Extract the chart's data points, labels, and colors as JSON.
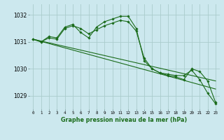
{
  "title": "Graphe pression niveau de la mer (hPa)",
  "bg_color": "#cce8ee",
  "grid_color": "#aacccc",
  "line_color": "#1a6b1a",
  "xlim": [
    -0.5,
    23.5
  ],
  "ylim": [
    1028.5,
    1032.4
  ],
  "yticks": [
    1029,
    1030,
    1031,
    1032
  ],
  "xtick_labels": [
    "0",
    "1",
    "2",
    "3",
    "4",
    "5",
    "6",
    "7",
    "8",
    "9",
    "10",
    "11",
    "12",
    "13",
    "14",
    "15",
    "16",
    "17",
    "18",
    "19",
    "20",
    "21",
    "22",
    "23"
  ],
  "series": [
    {
      "x": [
        0,
        1,
        2,
        3,
        4,
        5,
        6,
        7,
        8,
        9,
        10,
        11,
        12,
        13,
        14,
        15,
        16,
        17,
        18,
        19,
        20,
        21,
        22,
        23
      ],
      "y": [
        1031.1,
        1031.0,
        1031.2,
        1031.15,
        1031.55,
        1031.65,
        1031.35,
        1031.15,
        1031.55,
        1031.75,
        1031.85,
        1031.95,
        1031.95,
        1031.5,
        1030.3,
        1030.0,
        1029.85,
        1029.8,
        1029.75,
        1029.75,
        1029.95,
        1029.6,
        1029.1,
        1028.7
      ],
      "has_marker": true
    },
    {
      "x": [
        0,
        1,
        2,
        3,
        4,
        5,
        6,
        7,
        8,
        9,
        10,
        11,
        12,
        13,
        14,
        15,
        16,
        17,
        18,
        19,
        20,
        21,
        22,
        23
      ],
      "y": [
        1031.1,
        1031.0,
        1031.15,
        1031.1,
        1031.5,
        1031.6,
        1031.5,
        1031.3,
        1031.45,
        1031.6,
        1031.7,
        1031.8,
        1031.75,
        1031.4,
        1030.4,
        1030.0,
        1029.85,
        1029.75,
        1029.7,
        1029.6,
        1030.0,
        1029.9,
        1029.55,
        1028.75
      ],
      "has_marker": true
    },
    {
      "x": [
        0,
        23
      ],
      "y": [
        1031.1,
        1029.55
      ],
      "has_marker": false
    },
    {
      "x": [
        0,
        23
      ],
      "y": [
        1031.1,
        1029.25
      ],
      "has_marker": false
    }
  ]
}
